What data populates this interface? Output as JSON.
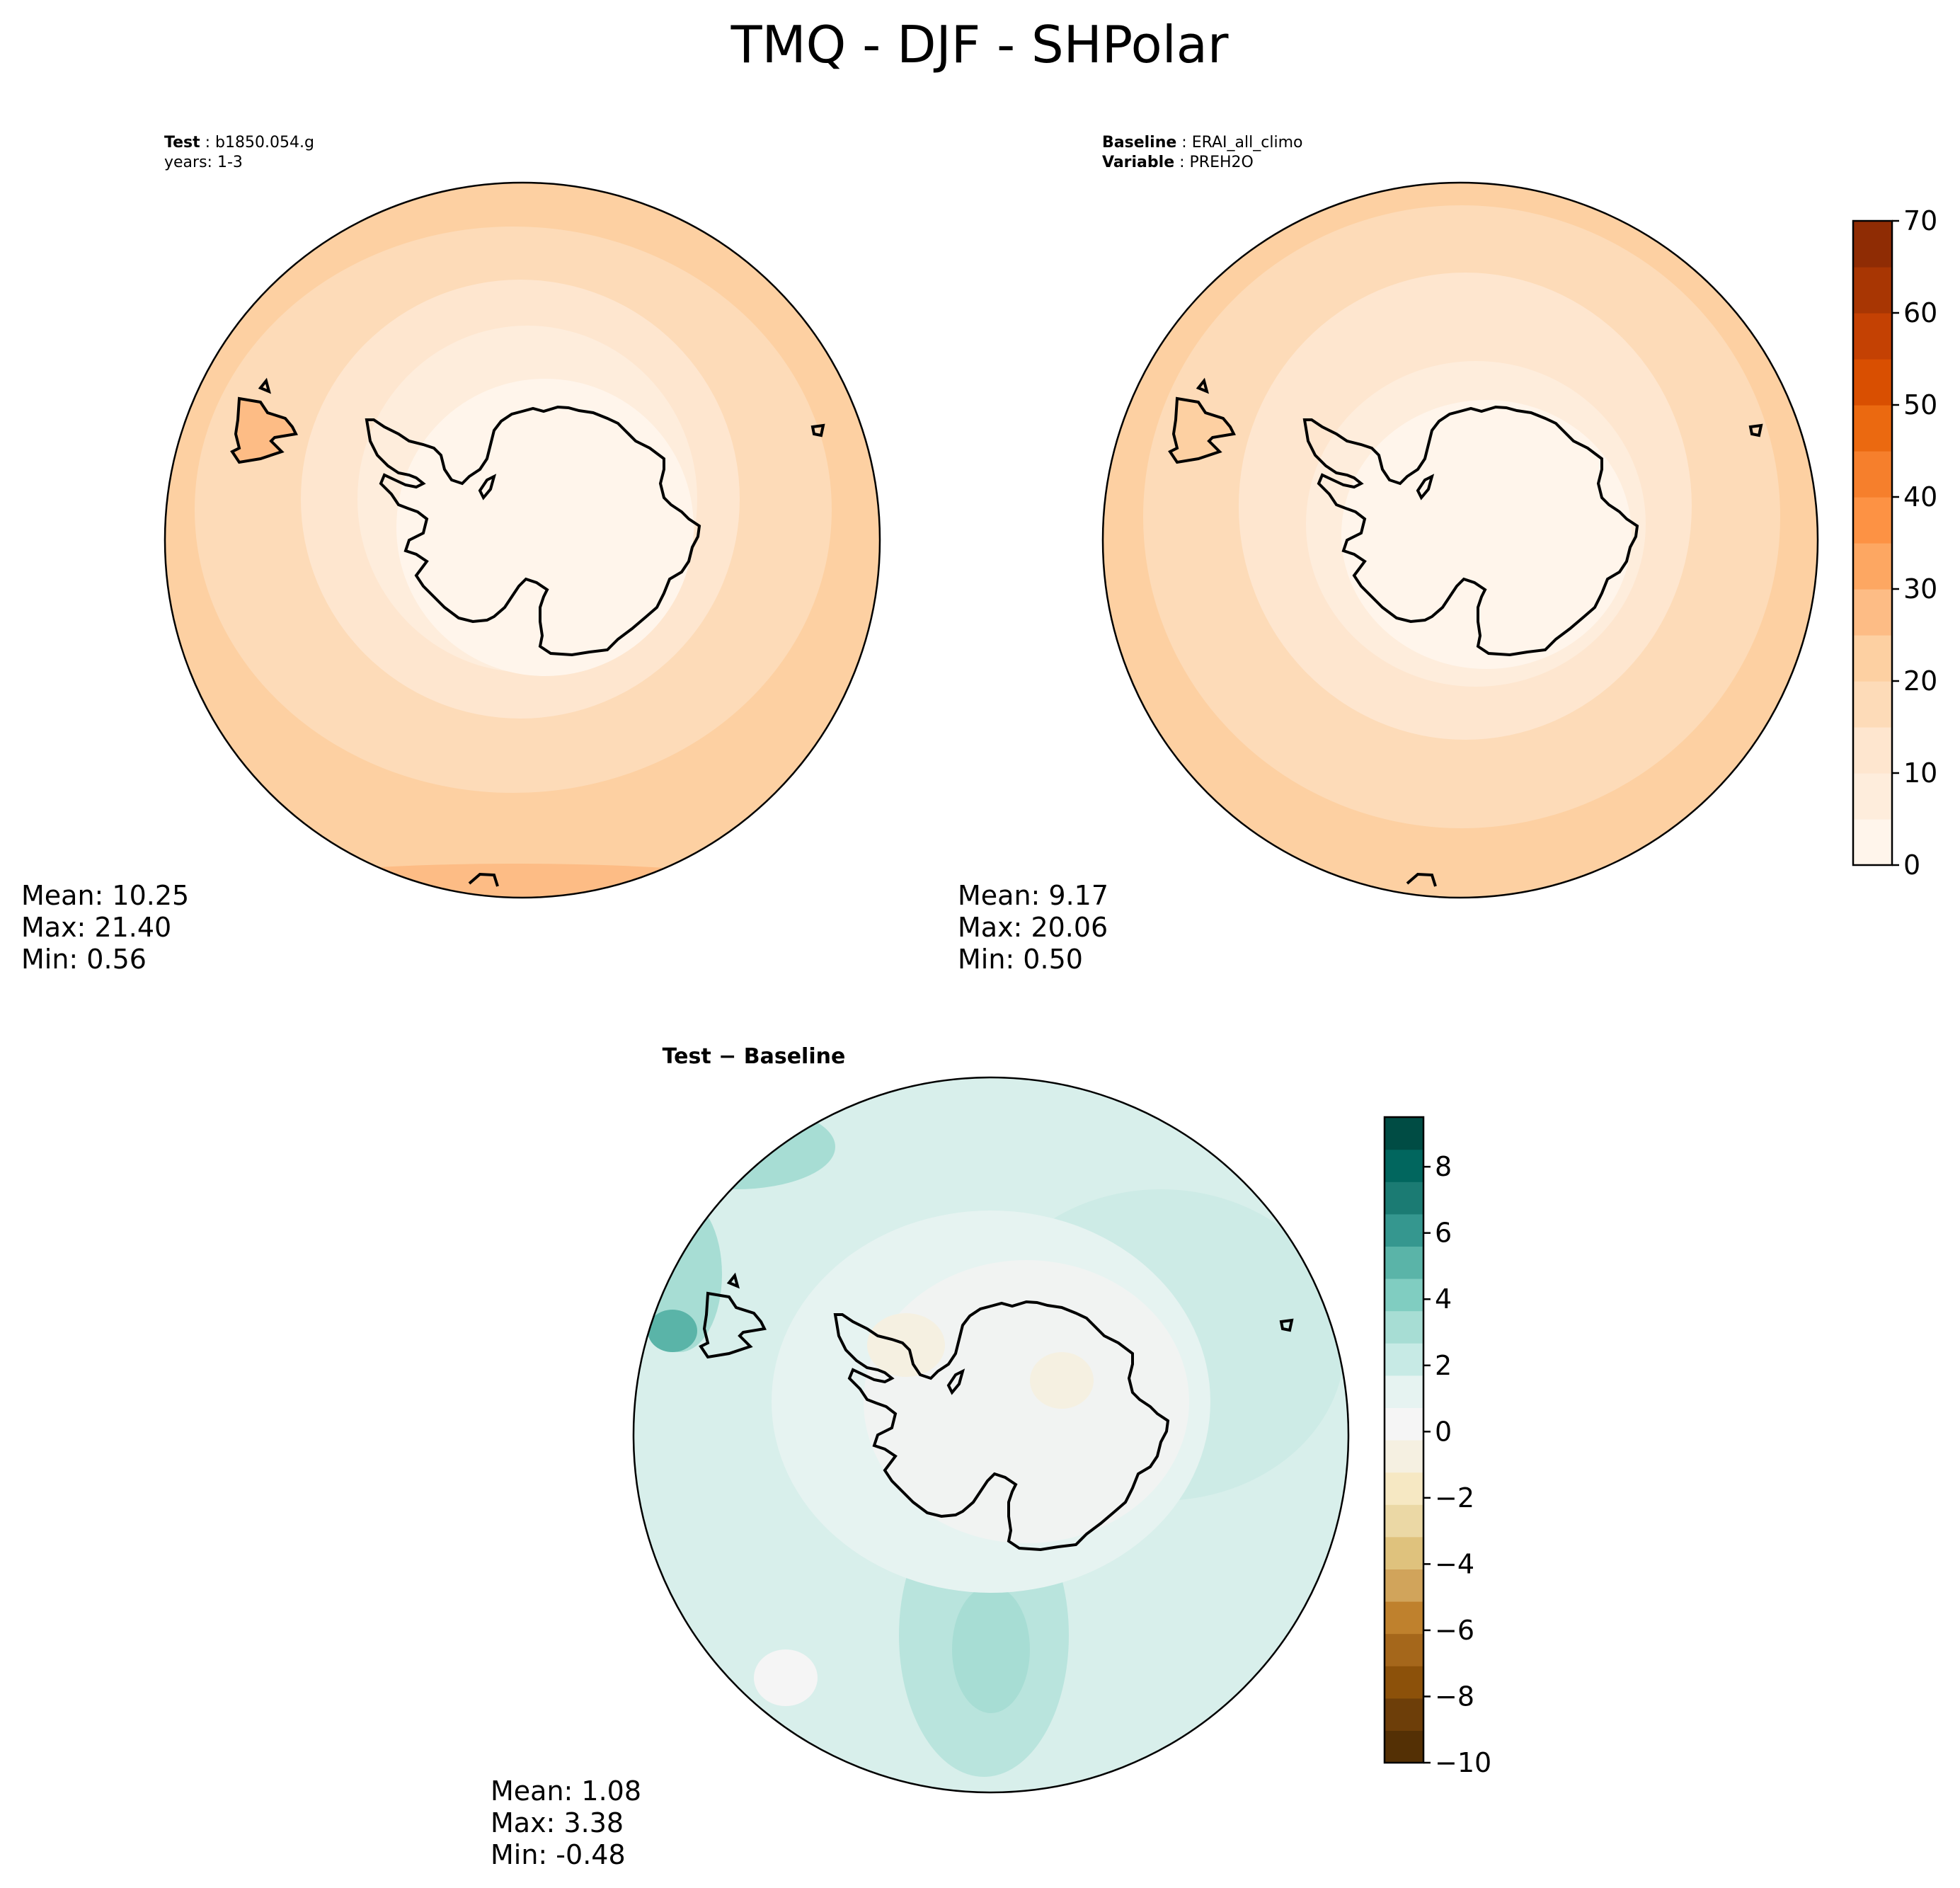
{
  "figure_title": "TMQ - DJF - SHPolar",
  "colors": {
    "coast": "#000000",
    "orange_scale": [
      "#fff5eb",
      "#feeddc",
      "#fee6cf",
      "#fddbb8",
      "#fdd0a2",
      "#fdbc85",
      "#fda762",
      "#fd9244",
      "#f67f2c",
      "#eb6910",
      "#d94f01",
      "#c44103",
      "#a83603",
      "#8f2c04"
    ],
    "teal_brown_scale": [
      "#543005",
      "#6d3e09",
      "#8c510a",
      "#a5671b",
      "#bf812d",
      "#d1a45b",
      "#dfc27d",
      "#ebd8a5",
      "#f6e8c3",
      "#f5f0e1",
      "#f5f5f5",
      "#e6f3f1",
      "#c7eae5",
      "#a7ddd4",
      "#80cdc1",
      "#5ab4a8",
      "#35978f",
      "#1b7b73",
      "#01665e",
      "#004c44",
      "#003c30"
    ]
  },
  "panels": {
    "test": {
      "header_bold": "Test",
      "header_value": "b1850.054.g",
      "header_line2": "years: 1-3",
      "mean": "Mean: 10.25",
      "max": "Max: 21.40",
      "min": "Min:  0.56"
    },
    "baseline": {
      "header_bold": "Baseline",
      "header_value": "ERAI_all_climo",
      "header2_bold": "Variable",
      "header2_value": "PREH2O",
      "mean": "Mean:  9.17",
      "max": "Max: 20.06",
      "min": "Min:  0.50"
    },
    "diff": {
      "header": "Test − Baseline",
      "mean": "Mean:  1.08",
      "max": "Max:  3.38",
      "min": "Min: -0.48"
    }
  },
  "colorbar_top": {
    "min": 0,
    "max": 70,
    "step": 5,
    "ticks": [
      "0",
      "10",
      "20",
      "30",
      "40",
      "50",
      "60",
      "70"
    ]
  },
  "colorbar_bottom": {
    "min": -10,
    "max": 9.5,
    "step": 1,
    "ticks": [
      "−10",
      "−8",
      "−6",
      "−4",
      "−2",
      "0",
      "2",
      "4",
      "6",
      "8"
    ]
  },
  "chart_data": [
    {
      "type": "heatmap",
      "title": "Test : b1850.054.g years: 1-3",
      "variable": "TMQ",
      "season": "DJF",
      "region": "SHPolar",
      "stats": {
        "mean": 10.25,
        "max": 21.4,
        "min": 0.56
      },
      "colorbar_range": [
        0,
        70
      ]
    },
    {
      "type": "heatmap",
      "title": "Baseline : ERAI_all_climo Variable : PREH2O",
      "stats": {
        "mean": 9.17,
        "max": 20.06,
        "min": 0.5
      },
      "colorbar_range": [
        0,
        70
      ]
    },
    {
      "type": "heatmap",
      "title": "Test − Baseline",
      "stats": {
        "mean": 1.08,
        "max": 3.38,
        "min": -0.48
      },
      "colorbar_range": [
        -10,
        9.5
      ]
    }
  ]
}
